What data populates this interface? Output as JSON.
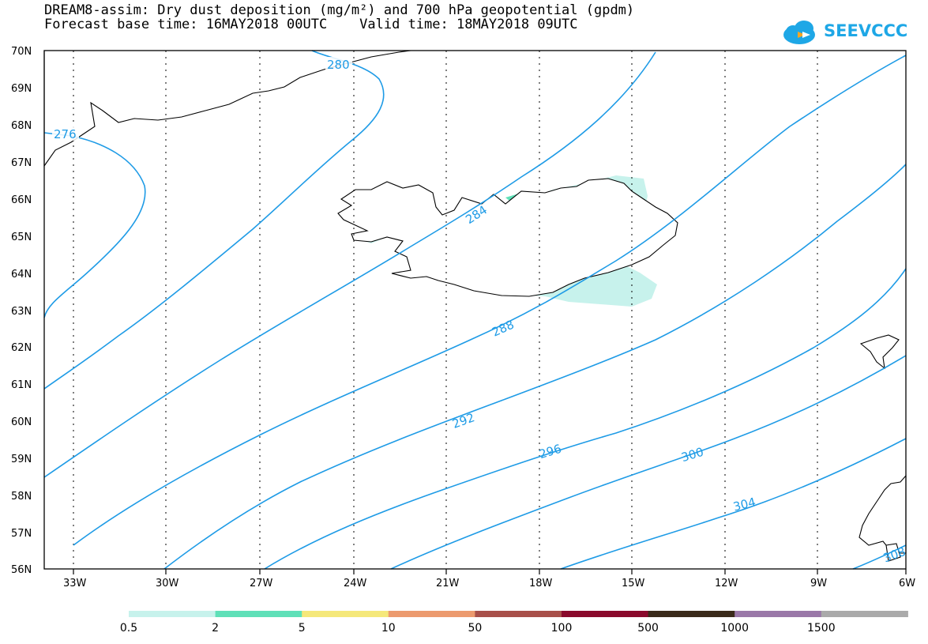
{
  "header": {
    "title_line1": "DREAM8-assim: Dry dust deposition (mg/m²) and 700 hPa geopotential (gpdm)",
    "title_line2": "Forecast base time: 16MAY2018 00UTC    Valid time: 18MAY2018 09UTC",
    "logo_text": "SEEVCCC"
  },
  "map": {
    "lat_labels": [
      "70N",
      "69N",
      "68N",
      "67N",
      "66N",
      "65N",
      "64N",
      "63N",
      "62N",
      "61N",
      "60N",
      "59N",
      "58N",
      "57N",
      "56N"
    ],
    "lon_labels": [
      "33W",
      "30W",
      "27W",
      "24W",
      "21W",
      "18W",
      "15W",
      "12W",
      "9W",
      "6W"
    ],
    "contour_labels": [
      "280",
      "276",
      "284",
      "288",
      "292",
      "296",
      "300",
      "304",
      "308"
    ],
    "contour_color": "#1e9be6"
  },
  "colorbar": {
    "labels": [
      "0.5",
      "2",
      "5",
      "10",
      "50",
      "100",
      "500",
      "1000",
      "1500"
    ],
    "colors": [
      "#c7f2ec",
      "#5fe0b8",
      "#f5e87a",
      "#ec9a6e",
      "#a8504a",
      "#8a0a2c",
      "#3a2a1a",
      "#9a78a8",
      "#aaaaaa"
    ]
  }
}
